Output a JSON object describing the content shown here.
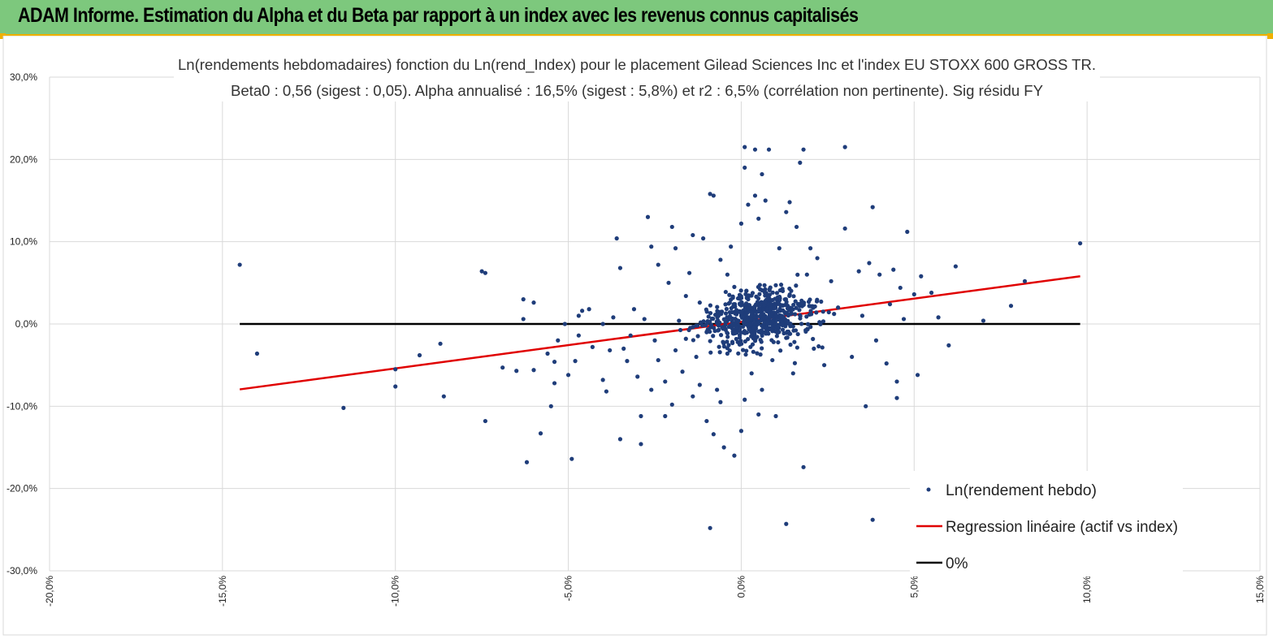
{
  "banner": {
    "title": "ADAM Informe. Estimation du Alpha et du Beta par rapport à un index avec les revenus connus capitalisés"
  },
  "colors": {
    "banner": "#7dc87d",
    "accent": "#f0b000",
    "points": "#1f3d7a",
    "regression": "#e00000",
    "zero_line": "#000000"
  },
  "chart_data": {
    "type": "scatter",
    "title": "Ln(rendements hebdomadaires) fonction du Ln(rend_Index) pour le placement Gilead Sciences Inc et l'index EU  STOXX 600 GROSS TR.",
    "subtitle": "Beta0 : 0,56  (sigest : 0,05). Alpha annualisé : 16,5% (sigest :  5,8%) et r2 : 6,5% (corrélation non pertinente). Sig résidu FY",
    "xlabel": "",
    "ylabel": "",
    "xlim": [
      -0.2,
      0.15
    ],
    "ylim": [
      -0.3,
      0.3
    ],
    "x_ticks": [
      "-20,0%",
      "-15,0%",
      "-10,0%",
      "-5,0%",
      "0,0%",
      "5,0%",
      "10,0%",
      "15,0%"
    ],
    "y_ticks": [
      "30,0%",
      "20,0%",
      "10,0%",
      "0,0%",
      "-10,0%",
      "-20,0%",
      "-30,0%"
    ],
    "grid": true,
    "legend_position": "bottom-right",
    "series": [
      {
        "name": "Ln(rendement hebdo)",
        "kind": "scatter",
        "points": [
          [
            -0.145,
            0.072
          ],
          [
            -0.14,
            -0.036
          ],
          [
            -0.115,
            -0.102
          ],
          [
            -0.1,
            -0.055
          ],
          [
            -0.1,
            -0.076
          ],
          [
            -0.093,
            -0.038
          ],
          [
            -0.087,
            -0.024
          ],
          [
            -0.086,
            -0.088
          ],
          [
            -0.075,
            0.064
          ],
          [
            -0.074,
            0.062
          ],
          [
            -0.074,
            -0.118
          ],
          [
            -0.069,
            -0.053
          ],
          [
            -0.065,
            -0.057
          ],
          [
            -0.063,
            0.03
          ],
          [
            -0.063,
            0.006
          ],
          [
            -0.062,
            -0.168
          ],
          [
            -0.06,
            0.026
          ],
          [
            -0.06,
            -0.056
          ],
          [
            -0.058,
            -0.133
          ],
          [
            -0.056,
            -0.036
          ],
          [
            -0.055,
            -0.1
          ],
          [
            -0.054,
            -0.072
          ],
          [
            -0.054,
            -0.046
          ],
          [
            -0.053,
            -0.02
          ],
          [
            -0.051,
            0.0
          ],
          [
            -0.05,
            -0.062
          ],
          [
            -0.049,
            -0.164
          ],
          [
            -0.048,
            -0.045
          ],
          [
            -0.047,
            -0.014
          ],
          [
            -0.047,
            0.01
          ],
          [
            -0.046,
            0.016
          ],
          [
            -0.044,
            0.018
          ],
          [
            -0.043,
            -0.028
          ],
          [
            -0.04,
            -0.068
          ],
          [
            -0.04,
            0.0
          ],
          [
            -0.039,
            -0.082
          ],
          [
            -0.038,
            -0.032
          ],
          [
            -0.037,
            0.008
          ],
          [
            -0.036,
            0.104
          ],
          [
            -0.035,
            -0.14
          ],
          [
            -0.035,
            0.068
          ],
          [
            -0.034,
            -0.03
          ],
          [
            -0.033,
            -0.045
          ],
          [
            -0.032,
            -0.014
          ],
          [
            -0.031,
            0.018
          ],
          [
            -0.03,
            -0.064
          ],
          [
            -0.029,
            -0.146
          ],
          [
            -0.029,
            -0.112
          ],
          [
            -0.028,
            0.006
          ],
          [
            -0.027,
            0.13
          ],
          [
            -0.026,
            -0.08
          ],
          [
            -0.026,
            0.094
          ],
          [
            -0.025,
            -0.02
          ],
          [
            -0.024,
            0.072
          ],
          [
            -0.024,
            -0.044
          ],
          [
            -0.022,
            -0.112
          ],
          [
            -0.022,
            -0.07
          ],
          [
            -0.021,
            0.05
          ],
          [
            -0.02,
            0.118
          ],
          [
            -0.02,
            -0.098
          ],
          [
            -0.019,
            -0.032
          ],
          [
            -0.019,
            0.092
          ],
          [
            -0.018,
            0.004
          ],
          [
            -0.017,
            -0.058
          ],
          [
            -0.016,
            0.034
          ],
          [
            -0.016,
            -0.018
          ],
          [
            -0.015,
            0.062
          ],
          [
            -0.014,
            -0.088
          ],
          [
            -0.014,
            0.108
          ],
          [
            -0.013,
            -0.04
          ],
          [
            -0.012,
            -0.074
          ],
          [
            -0.012,
            0.026
          ],
          [
            -0.011,
            0.104
          ],
          [
            -0.01,
            -0.118
          ],
          [
            -0.01,
            -0.01
          ],
          [
            -0.009,
            0.158
          ],
          [
            -0.009,
            -0.248
          ],
          [
            -0.008,
            0.156
          ],
          [
            -0.008,
            -0.134
          ],
          [
            -0.007,
            -0.08
          ],
          [
            -0.007,
            0.012
          ],
          [
            -0.006,
            -0.095
          ],
          [
            -0.006,
            0.078
          ],
          [
            -0.005,
            -0.15
          ],
          [
            -0.004,
            0.06
          ],
          [
            -0.004,
            -0.036
          ],
          [
            -0.003,
            0.094
          ],
          [
            -0.002,
            -0.16
          ],
          [
            -0.002,
            0.045
          ],
          [
            -0.001,
            -0.022
          ],
          [
            0.0,
            -0.13
          ],
          [
            0.0,
            0.122
          ],
          [
            0.001,
            0.19
          ],
          [
            0.001,
            0.215
          ],
          [
            0.001,
            -0.092
          ],
          [
            0.002,
            0.145
          ],
          [
            0.002,
            0.03
          ],
          [
            0.003,
            -0.06
          ],
          [
            0.004,
            0.212
          ],
          [
            0.004,
            0.156
          ],
          [
            0.005,
            -0.11
          ],
          [
            0.005,
            0.128
          ],
          [
            0.006,
            0.182
          ],
          [
            0.006,
            -0.08
          ],
          [
            0.007,
            0.15
          ],
          [
            0.008,
            0.212
          ],
          [
            0.009,
            -0.044
          ],
          [
            0.01,
            -0.112
          ],
          [
            0.011,
            0.092
          ],
          [
            0.012,
            0.04
          ],
          [
            0.013,
            0.136
          ],
          [
            0.013,
            -0.243
          ],
          [
            0.014,
            0.148
          ],
          [
            0.015,
            -0.06
          ],
          [
            0.016,
            0.118
          ],
          [
            0.017,
            0.196
          ],
          [
            0.018,
            0.212
          ],
          [
            0.018,
            -0.174
          ],
          [
            0.019,
            0.06
          ],
          [
            0.02,
            0.092
          ],
          [
            0.021,
            -0.03
          ],
          [
            0.022,
            0.08
          ],
          [
            0.024,
            -0.05
          ],
          [
            0.026,
            0.052
          ],
          [
            0.028,
            0.02
          ],
          [
            0.03,
            0.116
          ],
          [
            0.03,
            0.215
          ],
          [
            0.032,
            -0.04
          ],
          [
            0.034,
            0.064
          ],
          [
            0.035,
            0.01
          ],
          [
            0.036,
            -0.1
          ],
          [
            0.037,
            0.074
          ],
          [
            0.038,
            0.142
          ],
          [
            0.038,
            -0.238
          ],
          [
            0.039,
            -0.02
          ],
          [
            0.04,
            0.06
          ],
          [
            0.042,
            -0.048
          ],
          [
            0.043,
            0.024
          ],
          [
            0.044,
            0.066
          ],
          [
            0.045,
            -0.07
          ],
          [
            0.045,
            -0.09
          ],
          [
            0.046,
            0.044
          ],
          [
            0.047,
            0.006
          ],
          [
            0.048,
            0.112
          ],
          [
            0.05,
            0.036
          ],
          [
            0.051,
            -0.062
          ],
          [
            0.052,
            0.058
          ],
          [
            0.055,
            0.038
          ],
          [
            0.057,
            0.008
          ],
          [
            0.06,
            -0.026
          ],
          [
            0.062,
            0.07
          ],
          [
            0.07,
            0.004
          ],
          [
            0.078,
            0.022
          ],
          [
            0.082,
            0.052
          ],
          [
            0.098,
            0.098
          ]
        ]
      },
      {
        "name": "Regression linéaire (actif vs index)",
        "kind": "line",
        "points": [
          [
            -0.145,
            -0.0795
          ],
          [
            0.098,
            0.058
          ]
        ]
      },
      {
        "name": "0%",
        "kind": "line",
        "points": [
          [
            -0.145,
            0.0
          ],
          [
            0.098,
            0.0
          ]
        ]
      }
    ]
  }
}
